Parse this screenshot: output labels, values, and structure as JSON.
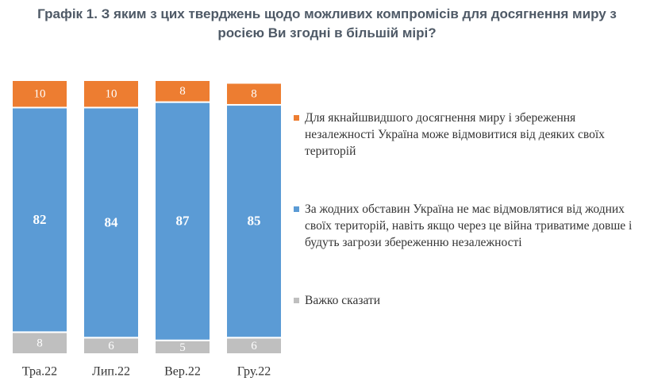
{
  "chart_data": {
    "type": "stacked-bar",
    "title": "Графік 1. З яким з цих тверджень щодо можливих компромісів для досягнення миру з росією Ви згодні в більшій мірі?",
    "categories": [
      "Тра.22",
      "Лип.22",
      "Вер.22",
      "Гру.22"
    ],
    "series": [
      {
        "name": "Для якнайшвидшого досягнення миру і збереження незалежності Україна може відмовитися від деяких своїх територій",
        "color": "#ed7d31",
        "values": [
          10,
          10,
          8,
          8
        ]
      },
      {
        "name": "За жодних обставин Україна не має відмовлятися від жодних своїх територій, навіть якщо через це війна триватиме довше і будуть загрози збереженню незалежності",
        "color": "#5b9bd5",
        "values": [
          82,
          84,
          87,
          85
        ]
      },
      {
        "name": "Важко сказати",
        "color": "#bfbfbf",
        "values": [
          8,
          6,
          5,
          6
        ]
      }
    ]
  }
}
